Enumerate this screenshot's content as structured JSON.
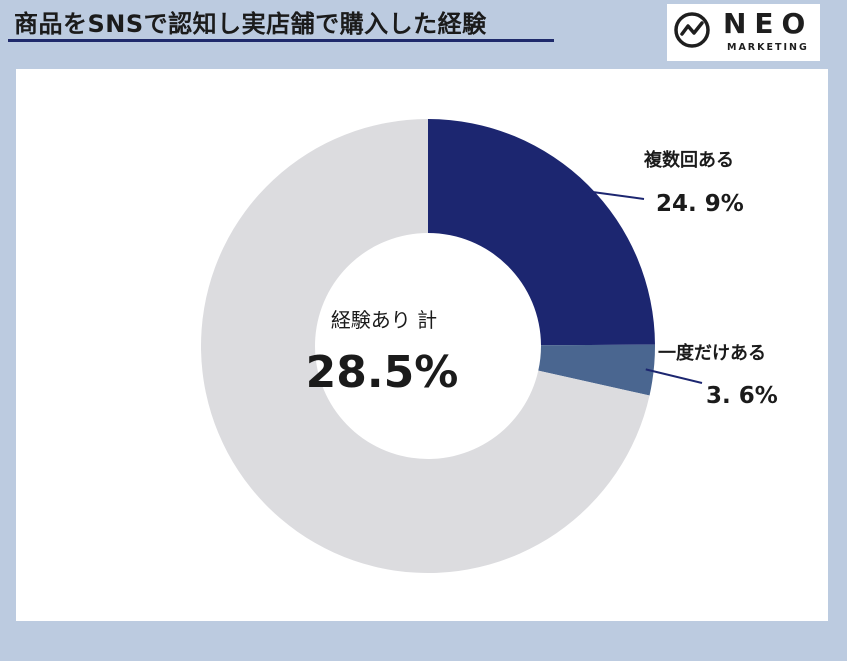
{
  "header": {
    "title": "商品をSNSで認知し実店舗で購入した経験",
    "logo_word": "NEO",
    "logo_sub": "MARKETING"
  },
  "chart_data": {
    "type": "pie",
    "variant": "donut",
    "center_label": "経験あり 計",
    "center_value": "28.5%",
    "slices": [
      {
        "label": "複数回ある",
        "display": "24. 9%",
        "value": 24.9,
        "color": "#1c2670"
      },
      {
        "label": "一度だけある",
        "display": "3. 6%",
        "value": 3.6,
        "color": "#4a6690"
      },
      {
        "label": "",
        "display": "",
        "value": 71.5,
        "color": "#dcdcdf"
      }
    ],
    "legend": "none"
  },
  "colors": {
    "background": "#bccbe0",
    "accent": "#1c2670"
  }
}
